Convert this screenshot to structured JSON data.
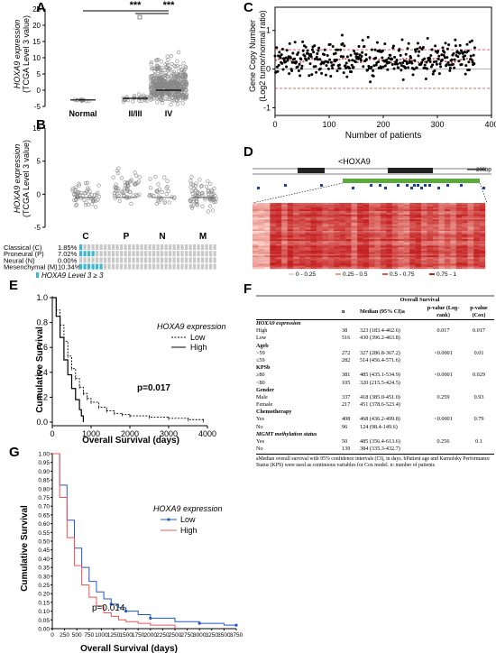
{
  "panels": {
    "A": {
      "label": "A",
      "ylabel": "HOXA9 expression",
      "ylabel2": "(TCGA Level 3 value)",
      "yticks": [
        "-5",
        "0",
        "5",
        "10",
        "15",
        "20",
        "25"
      ],
      "categories": [
        "Normal",
        "II/III",
        "IV"
      ],
      "sig1": "***",
      "sig2": "***",
      "chart_data": {
        "type": "scatter",
        "categories": [
          "Normal",
          "II/III",
          "IV"
        ],
        "ylim": [
          -5,
          25
        ],
        "medians": [
          -3,
          -2.5,
          0
        ]
      }
    },
    "B": {
      "label": "B",
      "ylabel": "HOXA9 expression",
      "ylabel2": "(TCGA Level 3 value)",
      "yticks": [
        "-5",
        "0",
        "5",
        "10"
      ],
      "categories": [
        "C",
        "P",
        "N",
        "M"
      ],
      "chart_data": {
        "type": "scatter",
        "categories": [
          "C",
          "P",
          "N",
          "M"
        ],
        "ylim": [
          -5,
          10
        ]
      }
    },
    "oncoprint": {
      "rows": [
        {
          "name": "Classical (C)",
          "pct": "1.85%"
        },
        {
          "name": "Proneural (P)",
          "pct": "7.02%"
        },
        {
          "name": "Neural (N)",
          "pct": "0.00%"
        },
        {
          "name": "Mesenchymal (M)",
          "pct": "10.34%"
        }
      ],
      "legend": "HOXA9 Level 3 ≥ 3",
      "colors": {
        "hit": "#39b7d3",
        "base": "#c8c8c8"
      }
    },
    "C": {
      "label": "C",
      "ylabel": "Gene Copy Number",
      "ylabel2": "(Log2 tumor/normal ratio)",
      "xlabel": "Number of patients",
      "yticks": [
        "-1",
        "0",
        "1"
      ],
      "xticks": [
        "0",
        "100",
        "200",
        "300",
        "400"
      ],
      "chart_data": {
        "type": "scatter",
        "xlim": [
          0,
          400
        ],
        "ylim": [
          -1.2,
          1.6
        ],
        "thresholds": [
          0.5,
          -0.5
        ]
      }
    },
    "D": {
      "label": "D",
      "gene": "<HOXA9",
      "scale": "200bp",
      "legend": [
        "0 - 0.25",
        "0.25 - 0.5",
        "0.5 - 0.75",
        "0.75 - 1"
      ]
    },
    "E": {
      "label": "E",
      "legend_title": "HOXA9 expression",
      "legend_low": "Low",
      "legend_high": "High",
      "pvalue": "p=0.017",
      "ylabel": "Cumulative Survival",
      "xlabel": "Overall Survival (days)",
      "yticks": [
        "0.0",
        "0.2",
        "0.4",
        "0.6",
        "0.8",
        "1.0"
      ],
      "xticks": [
        "0",
        "1000",
        "2000",
        "3000",
        "4000"
      ],
      "chart_data": {
        "type": "line",
        "xlim": [
          0,
          4000
        ],
        "ylim": [
          0,
          1
        ],
        "series": [
          {
            "name": "Low",
            "x": [
              0,
              100,
              200,
              300,
              400,
              500,
              600,
              700,
              800,
              900,
              1000,
              1200,
              1400,
              1600,
              1800,
              2000,
              2500,
              3000,
              3500,
              3900
            ],
            "y": [
              1.0,
              0.9,
              0.78,
              0.65,
              0.53,
              0.43,
              0.35,
              0.28,
              0.23,
              0.19,
              0.16,
              0.12,
              0.09,
              0.07,
              0.06,
              0.05,
              0.04,
              0.03,
              0.02,
              0.01
            ]
          },
          {
            "name": "High",
            "x": [
              0,
              100,
              200,
              300,
              400,
              500,
              600,
              700,
              750,
              800
            ],
            "y": [
              1.0,
              0.85,
              0.68,
              0.5,
              0.38,
              0.27,
              0.18,
              0.1,
              0.05,
              0.0
            ]
          }
        ]
      }
    },
    "F": {
      "label": "F",
      "title": "Overall Survival",
      "head": [
        "",
        "n",
        "Median (95% CI)a",
        "p-value (Log-rank)",
        "p-value (Cox)"
      ],
      "rows": [
        {
          "k": "grp",
          "c": [
            "HOXA9 expression",
            "",
            "",
            "",
            ""
          ]
        },
        {
          "k": "v",
          "c": [
            "High",
            "38",
            "323 (183.4-462.6)",
            "0.017",
            "0.017"
          ]
        },
        {
          "k": "v",
          "c": [
            "Low",
            "516",
            "430 (396.2-463.8)",
            "",
            ""
          ]
        },
        {
          "k": "grpn",
          "c": [
            "Ageb",
            "",
            "",
            "",
            ""
          ]
        },
        {
          "k": "v",
          "c": [
            ">59",
            "272",
            "327 (286.8-367.2)",
            "<0.0001",
            "0.01"
          ]
        },
        {
          "k": "v",
          "c": [
            "≤59",
            "282",
            "514 (456.4-571.6)",
            "",
            ""
          ]
        },
        {
          "k": "grpn",
          "c": [
            "KPSb",
            "",
            "",
            "",
            ""
          ]
        },
        {
          "k": "v",
          "c": [
            "≥80",
            "381",
            "485 (435.1-534.9)",
            "<0.0001",
            "0.029"
          ]
        },
        {
          "k": "v",
          "c": [
            "<80",
            "105",
            "320 (215.5-424.5)",
            "",
            ""
          ]
        },
        {
          "k": "grpn",
          "c": [
            "Gender",
            "",
            "",
            "",
            ""
          ]
        },
        {
          "k": "v",
          "c": [
            "Male",
            "337",
            "418 (385.0-451.0)",
            "0.259",
            "0.93"
          ]
        },
        {
          "k": "v",
          "c": [
            "Female",
            "217",
            "451 (378.6-523.4)",
            "",
            ""
          ]
        },
        {
          "k": "grpn",
          "c": [
            "Chemotherapy",
            "",
            "",
            "",
            ""
          ]
        },
        {
          "k": "v",
          "c": [
            "Yes",
            "408",
            "468 (436.2-499.8)",
            "<0.0001",
            "0.79"
          ]
        },
        {
          "k": "v",
          "c": [
            "No",
            "96",
            "124 (98.4-149.6)",
            "",
            ""
          ]
        },
        {
          "k": "grp",
          "c": [
            "MGMT methylation status",
            "",
            "",
            "",
            ""
          ]
        },
        {
          "k": "v",
          "c": [
            "Yes",
            "50",
            "485 (356.4-613.6)",
            "0.256",
            "0.1"
          ]
        },
        {
          "k": "v",
          "c": [
            "No",
            "139",
            "384 (335.3-432.7)",
            "",
            ""
          ]
        }
      ],
      "footnote": "aMedian overall survival with 95% confidence intervals (CI), in days. bPatient age and Karnofsky Performance Status (KPS) were used as continuous variables for Cox model. n: number of patients"
    },
    "G": {
      "label": "G",
      "legend_title": "HOXA9 expression",
      "legend_low": "Low",
      "legend_high": "High",
      "pvalue": "p=0.014",
      "ylabel": "Cumulative Survival",
      "xlabel": "Overall Survival (days)",
      "yticks": [
        "0.00",
        "0.05",
        "0.10",
        "0.15",
        "0.20",
        "0.25",
        "0.30",
        "0.35",
        "0.40",
        "0.45",
        "0.50",
        "0.55",
        "0.60",
        "0.65",
        "0.70",
        "0.75",
        "0.80",
        "0.85",
        "0.90",
        "0.95",
        "1.00"
      ],
      "xticks": [
        "0",
        "250",
        "500",
        "750",
        "1000",
        "1250",
        "1500",
        "1750",
        "2000",
        "2250",
        "2500",
        "2750",
        "3000",
        "3250",
        "3500",
        "3750"
      ],
      "chart_data": {
        "type": "line",
        "xlim": [
          0,
          3750
        ],
        "ylim": [
          0,
          1
        ],
        "series": [
          {
            "name": "Low",
            "x": [
              0,
              150,
              300,
              450,
              600,
              750,
              900,
              1050,
              1200,
              1350,
              1500,
              1750,
              2000,
              2500,
              3000,
              3500,
              3750
            ],
            "y": [
              1.0,
              0.82,
              0.62,
              0.46,
              0.35,
              0.27,
              0.21,
              0.17,
              0.14,
              0.12,
              0.1,
              0.08,
              0.06,
              0.04,
              0.03,
              0.02,
              0.02
            ],
            "color": "#2255cc"
          },
          {
            "name": "High",
            "x": [
              0,
              150,
              300,
              450,
              600,
              750,
              900,
              1050,
              1200,
              1350,
              1500,
              1750,
              2000,
              2500
            ],
            "y": [
              1.0,
              0.75,
              0.52,
              0.36,
              0.25,
              0.18,
              0.13,
              0.09,
              0.07,
              0.05,
              0.04,
              0.03,
              0.02,
              0.0
            ],
            "color": "#ee5555"
          }
        ]
      }
    }
  }
}
